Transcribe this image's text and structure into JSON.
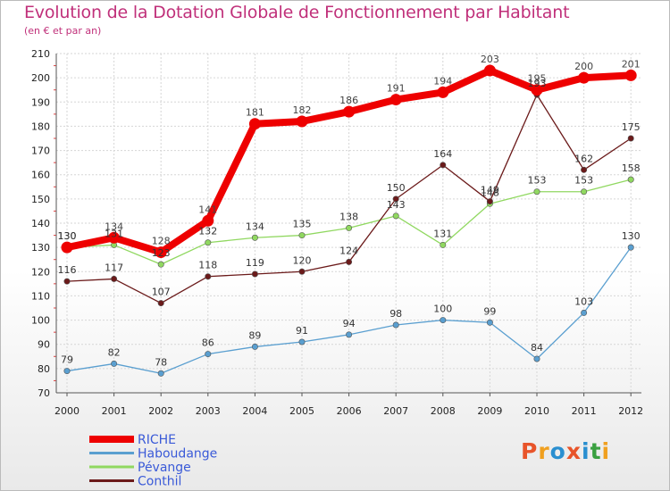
{
  "header": {
    "title": "Evolution de la Dotation Globale de Fonctionnement par Habitant",
    "subtitle": "(en € et par an)"
  },
  "logo": {
    "text": "Proxiti",
    "colors": [
      "#e8542a",
      "#f0a020",
      "#2a8fd0",
      "#e8542a",
      "#2a8fd0",
      "#3aa040",
      "#f0a020"
    ]
  },
  "chart_data": {
    "type": "line",
    "title": "Evolution de la Dotation Globale de Fonctionnement par Habitant",
    "subtitle": "(en € et par an)",
    "x": [
      "2000",
      "2001",
      "2002",
      "2003",
      "2004",
      "2005",
      "2006",
      "2007",
      "2008",
      "2009",
      "2010",
      "2011",
      "2012"
    ],
    "ylim": [
      70,
      210
    ],
    "yticks": [
      "70",
      "80",
      "90",
      "100",
      "110",
      "120",
      "130",
      "140",
      "150",
      "160",
      "170",
      "180",
      "190",
      "200",
      "210"
    ],
    "grid": true,
    "legend_position": "bottom-left",
    "series": [
      {
        "name": "RICHE",
        "color": "#ee0000",
        "values": [
          130,
          134,
          128,
          141,
          181,
          182,
          186,
          191,
          194,
          203,
          195,
          200,
          201
        ],
        "labels": [
          "130",
          "134",
          "128",
          "141",
          "181",
          "182",
          "186",
          "191",
          "194",
          "203",
          "195",
          "200",
          "201"
        ]
      },
      {
        "name": "Haboudange",
        "color": "#5a9fd0",
        "values": [
          79,
          82,
          78,
          86,
          89,
          91,
          94,
          98,
          100,
          99,
          84,
          103,
          130
        ],
        "labels": [
          "79",
          "82",
          "78",
          "86",
          "89",
          "91",
          "94",
          "98",
          "100",
          "99",
          "84",
          "103",
          "130"
        ]
      },
      {
        "name": "Pévange",
        "color": "#90d860",
        "values": [
          130,
          131,
          123,
          132,
          134,
          135,
          138,
          143,
          131,
          148,
          153,
          153,
          158
        ],
        "labels": [
          "130",
          "131",
          "123",
          "132",
          "134",
          "135",
          "138",
          "143",
          "131",
          "148",
          "153",
          "153",
          "158"
        ]
      },
      {
        "name": "Conthil",
        "color": "#6b1a1a",
        "values": [
          116,
          117,
          107,
          118,
          119,
          120,
          124,
          150,
          164,
          149,
          193,
          162,
          175
        ],
        "labels": [
          "116",
          "117",
          "107",
          "118",
          "119",
          "120",
          "124",
          "150",
          "164",
          "149",
          "193",
          "162",
          "175"
        ]
      }
    ]
  }
}
